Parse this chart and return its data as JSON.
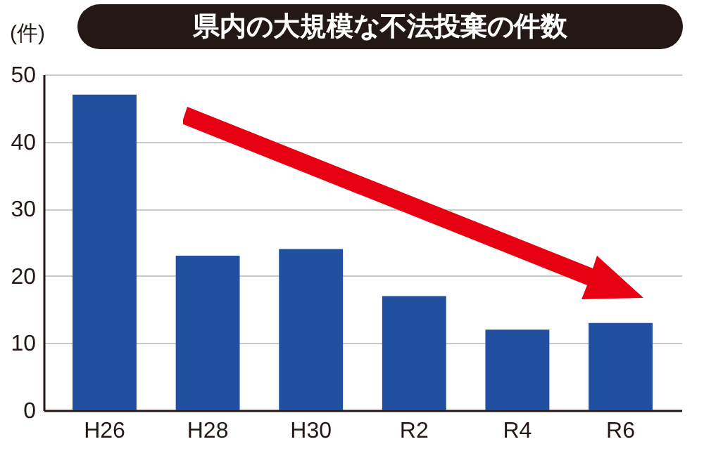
{
  "chart_data": {
    "type": "bar",
    "title": "県内の大規模な不法投棄の件数",
    "ylabel": "(件)",
    "categories": [
      "H26",
      "H28",
      "H30",
      "R2",
      "R4",
      "R6"
    ],
    "values": [
      47,
      23,
      24,
      17,
      12,
      13
    ],
    "color": "#2150a0",
    "ylim": [
      0,
      50
    ],
    "yticks": [
      0,
      10,
      20,
      30,
      40,
      50
    ],
    "grid": "y"
  }
}
